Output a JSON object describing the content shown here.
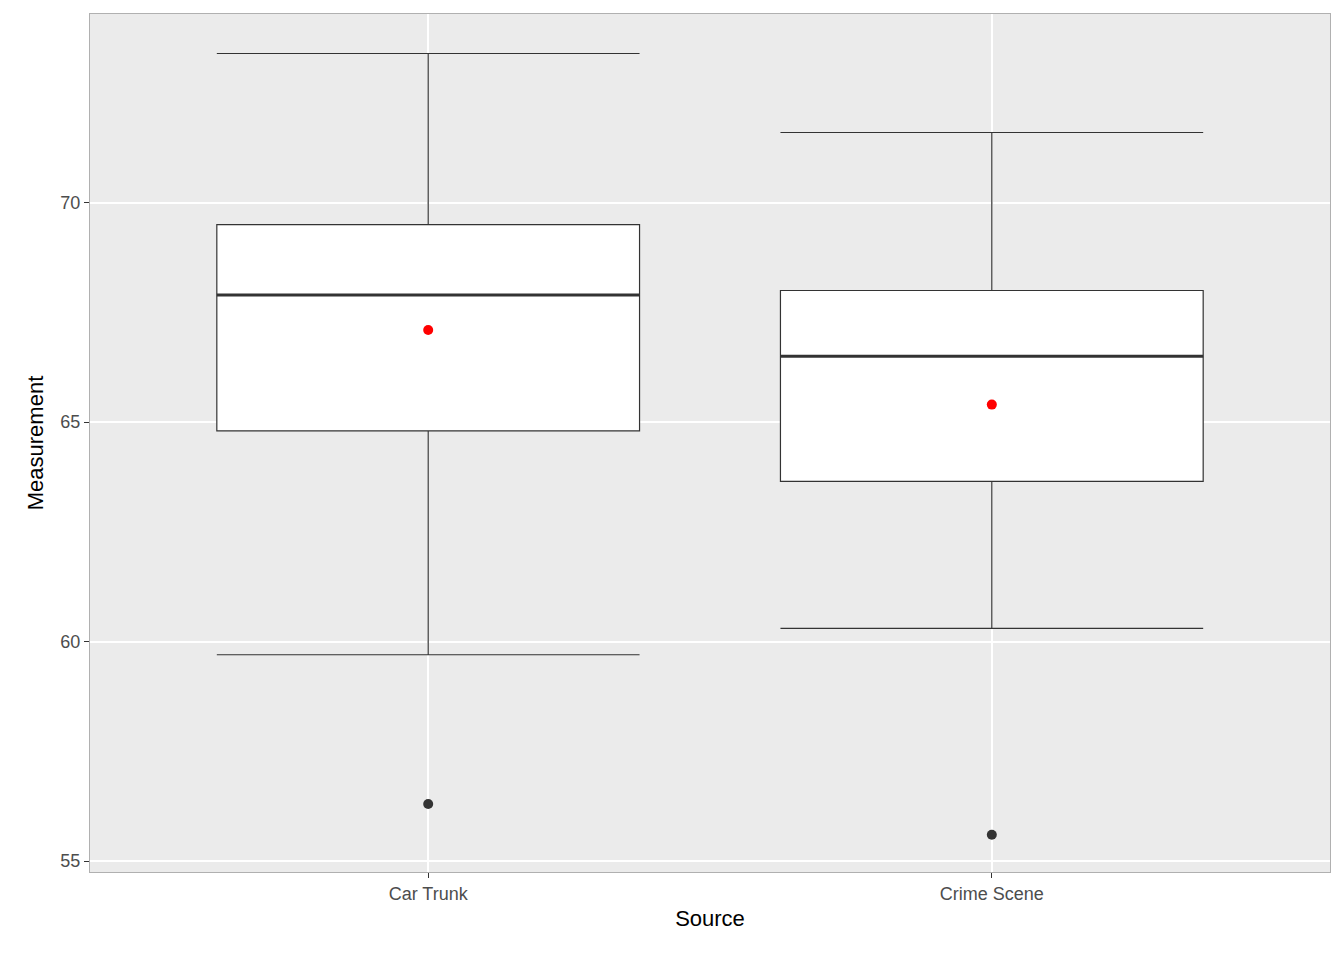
{
  "chart_data": {
    "type": "box",
    "x_label": "Source",
    "y_label": "Measurement",
    "categories": [
      "Car Trunk",
      "Crime Scene"
    ],
    "color": "#333333",
    "boxes": [
      {
        "lower_whisker": 59.7,
        "q1": 64.8,
        "median": 67.9,
        "q3": 69.5,
        "upper_whisker": 73.4
      },
      {
        "lower_whisker": 60.3,
        "q1": 63.65,
        "median": 66.5,
        "q3": 68.0,
        "upper_whisker": 71.6
      }
    ],
    "means": {
      "values": [
        67.1,
        65.4
      ],
      "color": "#ff0000"
    },
    "outliers": {
      "values": [
        [
          56.3
        ],
        [
          55.6
        ]
      ],
      "color": "#333333"
    },
    "ylim": [
      54.75,
      74.3
    ],
    "yticks": [
      55,
      60,
      65,
      70
    ],
    "grid": true
  }
}
